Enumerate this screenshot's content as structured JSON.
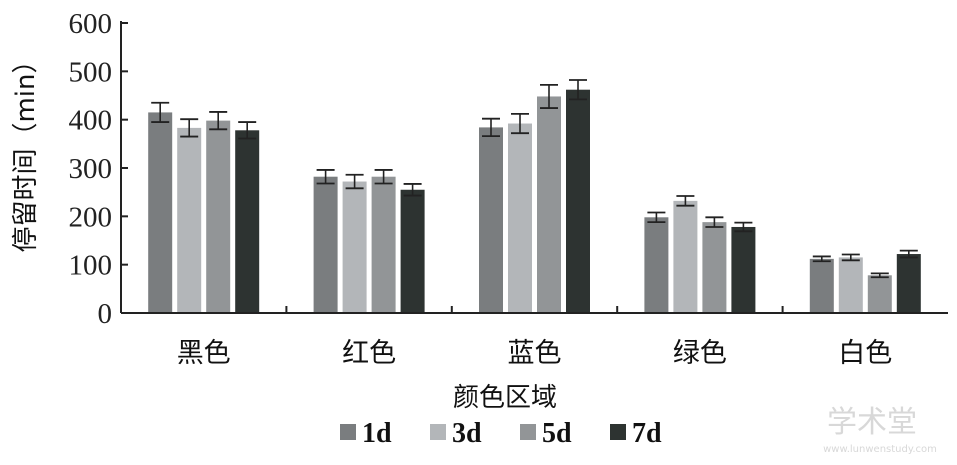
{
  "chart_data": {
    "type": "bar",
    "ylabel": "停留时间（min）",
    "xlabel": "颜色区域",
    "categories": [
      "黑色",
      "红色",
      "蓝色",
      "绿色",
      "白色"
    ],
    "ylim": [
      0,
      600
    ],
    "yticks": [
      0,
      100,
      200,
      300,
      400,
      500,
      600
    ],
    "grid": false,
    "legend_position": "bottom",
    "series": [
      {
        "name": "1d",
        "color": "#7a7d7f",
        "values": [
          415,
          282,
          384,
          198,
          112
        ],
        "errors": [
          20,
          14,
          18,
          10,
          5
        ]
      },
      {
        "name": "3d",
        "color": "#b3b6b9",
        "values": [
          383,
          272,
          392,
          232,
          115
        ],
        "errors": [
          18,
          14,
          20,
          10,
          6
        ]
      },
      {
        "name": "5d",
        "color": "#929597",
        "values": [
          398,
          282,
          448,
          188,
          78
        ],
        "errors": [
          18,
          14,
          24,
          10,
          4
        ]
      },
      {
        "name": "7d",
        "color": "#2d3331",
        "values": [
          378,
          255,
          462,
          178,
          122
        ],
        "errors": [
          17,
          12,
          20,
          9,
          7
        ]
      }
    ]
  },
  "watermark": {
    "title": "学术堂",
    "url": "www.lunwenstudy.com"
  }
}
